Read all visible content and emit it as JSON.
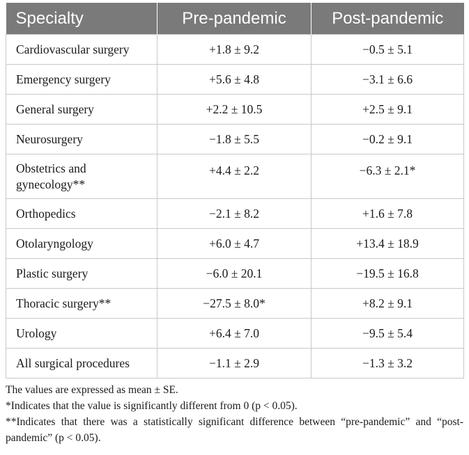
{
  "table": {
    "headers": [
      "Specialty",
      "Pre-pandemic",
      "Post-pandemic"
    ],
    "rows": [
      {
        "specialty": "Cardiovascular surgery",
        "pre": "+1.8 ± 9.2",
        "post": "−0.5 ± 5.1"
      },
      {
        "specialty": "Emergency surgery",
        "pre": "+5.6 ± 4.8",
        "post": "−3.1 ± 6.6"
      },
      {
        "specialty": "General surgery",
        "pre": "+2.2 ± 10.5",
        "post": "+2.5 ± 9.1"
      },
      {
        "specialty": "Neurosurgery",
        "pre": "−1.8 ± 5.5",
        "post": "−0.2 ± 9.1"
      },
      {
        "specialty_line1": "Obstetrics and",
        "specialty_line2": "gynecology**",
        "pre": "+4.4 ± 2.2",
        "post": "−6.3 ± 2.1*"
      },
      {
        "specialty": "Orthopedics",
        "pre": "−2.1 ± 8.2",
        "post": "+1.6 ± 7.8"
      },
      {
        "specialty": "Otolaryngology",
        "pre": "+6.0 ± 4.7",
        "post": "+13.4 ± 18.9"
      },
      {
        "specialty": "Plastic surgery",
        "pre": "−6.0 ± 20.1",
        "post": "−19.5 ± 16.8"
      },
      {
        "specialty": "Thoracic surgery**",
        "pre": "−27.5 ± 8.0*",
        "post": "+8.2 ± 9.1"
      },
      {
        "specialty": "Urology",
        "pre": "+6.4 ± 7.0",
        "post": "−9.5 ± 5.4"
      },
      {
        "specialty": "All surgical procedures",
        "pre": "−1.1 ± 2.9",
        "post": "−1.3 ± 3.2"
      }
    ]
  },
  "footnotes": [
    "The values are expressed as mean ± SE.",
    "*Indicates that the value is significantly different from 0 (p < 0.05).",
    "**Indicates that there was a statistically significant difference between “pre-pandemic” and “post-pandemic” (p < 0.05)."
  ]
}
